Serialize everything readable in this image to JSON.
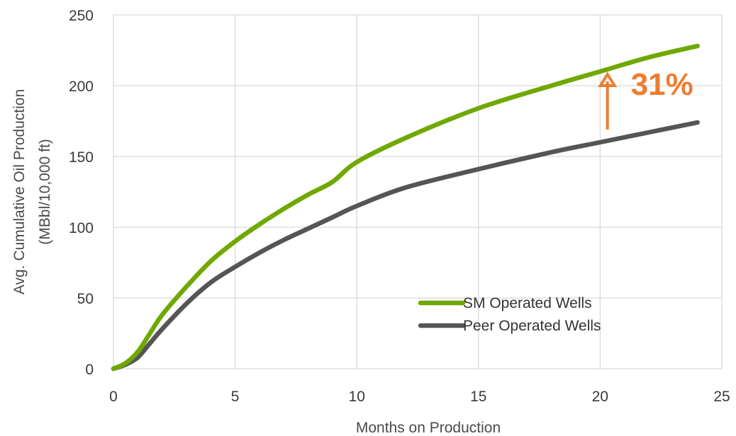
{
  "chart_data": {
    "type": "line",
    "xlabel": "Months on Production",
    "ylabel": [
      "Avg. Cumulative Oil Production",
      "(MBbl/10,000 ft)"
    ],
    "xlim": [
      0,
      25
    ],
    "ylim": [
      0,
      250
    ],
    "xticks": [
      0,
      5,
      10,
      15,
      20,
      25
    ],
    "yticks": [
      0,
      50,
      100,
      150,
      200,
      250
    ],
    "grid": true,
    "legend_position": "bottom-right",
    "series": [
      {
        "name": "SM Operated Wells",
        "color": "#6fa800",
        "points": [
          [
            0,
            0
          ],
          [
            0.5,
            4
          ],
          [
            1,
            12
          ],
          [
            1.5,
            25
          ],
          [
            2,
            38
          ],
          [
            3,
            58
          ],
          [
            4,
            76
          ],
          [
            5,
            90
          ],
          [
            6,
            102
          ],
          [
            7,
            113
          ],
          [
            8,
            123
          ],
          [
            9,
            132
          ],
          [
            10,
            146
          ],
          [
            12,
            163
          ],
          [
            15,
            184
          ],
          [
            18,
            200
          ],
          [
            20,
            210
          ],
          [
            22,
            220
          ],
          [
            24,
            228
          ]
        ]
      },
      {
        "name": "Peer Operated Wells",
        "color": "#555555",
        "points": [
          [
            0,
            0
          ],
          [
            0.5,
            3
          ],
          [
            1,
            8
          ],
          [
            1.5,
            18
          ],
          [
            2,
            28
          ],
          [
            3,
            46
          ],
          [
            4,
            61
          ],
          [
            5,
            72
          ],
          [
            6,
            82
          ],
          [
            7,
            91
          ],
          [
            8,
            99
          ],
          [
            9,
            107
          ],
          [
            10,
            115
          ],
          [
            12,
            128
          ],
          [
            15,
            141
          ],
          [
            18,
            153
          ],
          [
            20,
            160
          ],
          [
            22,
            167
          ],
          [
            24,
            174
          ]
        ]
      }
    ],
    "annotation": {
      "text": "31%",
      "color": "#ed7d31",
      "x": 20.3,
      "y_from": 169,
      "y_to": 207
    }
  }
}
